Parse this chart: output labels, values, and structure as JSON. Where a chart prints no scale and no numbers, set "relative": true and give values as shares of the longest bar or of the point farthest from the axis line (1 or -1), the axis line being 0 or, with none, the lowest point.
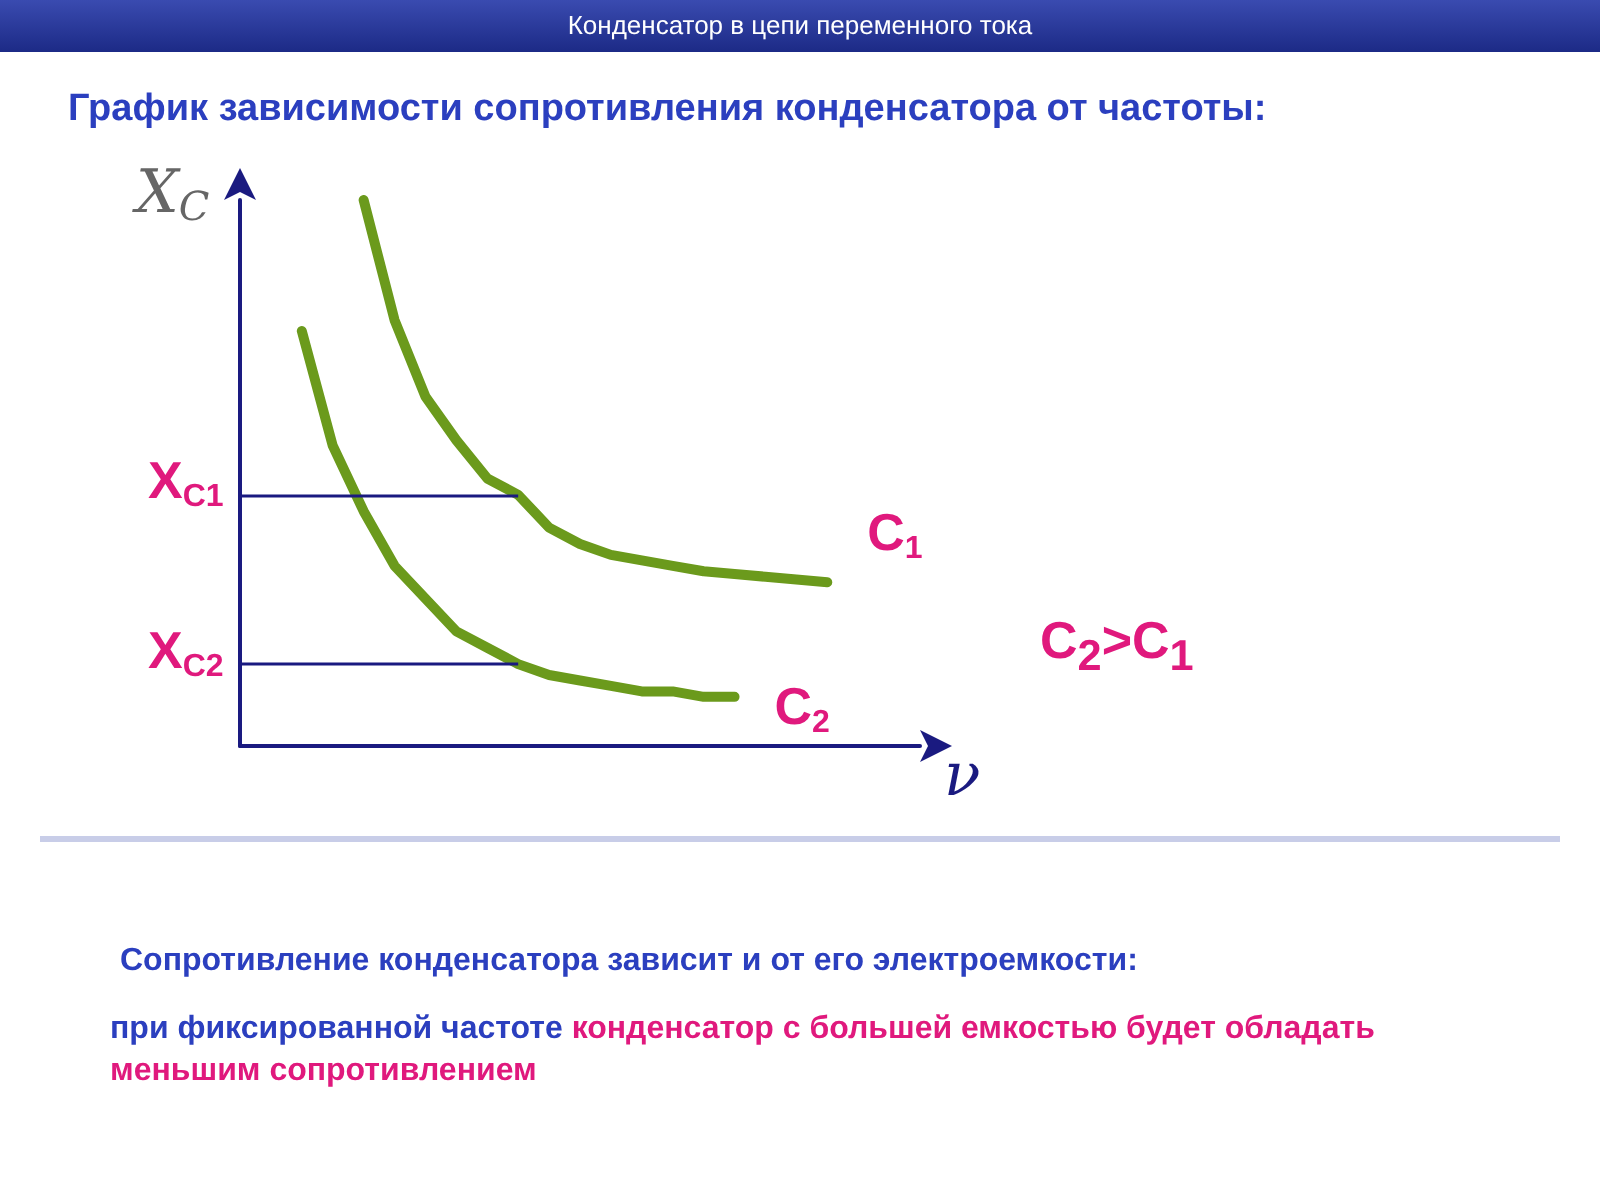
{
  "chart_data": {
    "type": "line",
    "relative": true,
    "title": "График зависимости сопротивления конденсатора от частоты:",
    "subtitle": "Конденсатор в цепи переменного тока",
    "xlabel": "ν",
    "ylabel": "X$_{C}$",
    "categories": [
      null,
      null,
      null,
      null,
      null,
      null,
      null,
      null,
      null,
      null,
      null,
      null,
      null,
      null,
      null,
      null,
      null,
      null,
      null,
      null,
      null,
      null,
      null
    ],
    "series": [
      {
        "name": "C$_{1}$",
        "color": "#6b9a1c",
        "values": [
          null,
          null,
          null,
          null,
          1.0,
          0.78,
          0.64,
          0.56,
          0.49,
          0.46,
          0.4,
          0.37,
          0.35,
          0.34,
          0.33,
          0.32,
          0.315,
          0.31,
          0.305,
          0.3,
          null,
          null,
          null
        ]
      },
      {
        "name": "C$_{2}$",
        "color": "#6b9a1c",
        "values": [
          null,
          null,
          0.76,
          0.55,
          0.43,
          0.33,
          0.27,
          0.21,
          0.18,
          0.15,
          0.13,
          0.12,
          0.11,
          0.1,
          0.1,
          0.09,
          0.09,
          null,
          null,
          null,
          null,
          null,
          null
        ]
      }
    ],
    "ref_lines": [
      {
        "axis": "y",
        "value": 0.46,
        "label": "X$_{C1}$",
        "color": "#1a1a80"
      },
      {
        "axis": "y",
        "value": 0.15,
        "label": "X$_{C2}$",
        "color": "#1a1a80"
      }
    ],
    "annotations": [
      "C$_{2}$>C$_{1}$",
      "Сопротивление конденсатора зависит и от его электроемкости:",
      "при фиксированной частоте",
      "конденсатор с большей емкостью будет обладать меньшим сопротивлением"
    ],
    "legend": false,
    "grid": false,
    "marker": "none",
    "line_style": "solid"
  }
}
